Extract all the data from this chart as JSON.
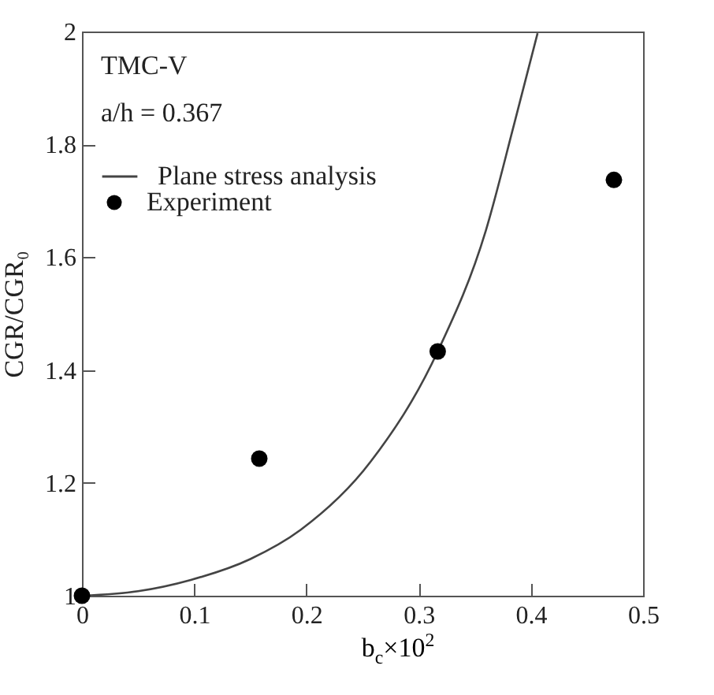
{
  "chart_data": {
    "type": "scatter",
    "xlabel": "b$_{c}$×10$^{2}$",
    "ylabel": "CGR/CGR₀",
    "annotations": [
      "TMC-V",
      "a/h = 0.367"
    ],
    "series": [
      {
        "name": "Plane stress analysis",
        "type": "line",
        "color": "#444444",
        "x": [
          0,
          0.05,
          0.097,
          0.15,
          0.195,
          0.257,
          0.317,
          0.36,
          0.385,
          0.406
        ],
        "values": [
          1,
          1.008,
          1.028,
          1.065,
          1.117,
          1.237,
          1.433,
          1.648,
          1.835,
          1.997
        ]
      },
      {
        "name": "Experiment",
        "marker": "circle",
        "color": "#000000",
        "x": [
          0,
          0.158,
          0.317,
          0.474
        ],
        "values": [
          1,
          1.243,
          1.433,
          1.737
        ]
      }
    ],
    "xlim": [
      0,
      0.5
    ],
    "ylim": [
      1,
      2
    ],
    "xticks": [
      0,
      0.1,
      0.2,
      0.3,
      0.4,
      0.5
    ],
    "yticks": [
      1,
      1.2,
      1.4,
      1.6,
      1.8,
      2
    ],
    "legend": "top left",
    "grid": false
  }
}
